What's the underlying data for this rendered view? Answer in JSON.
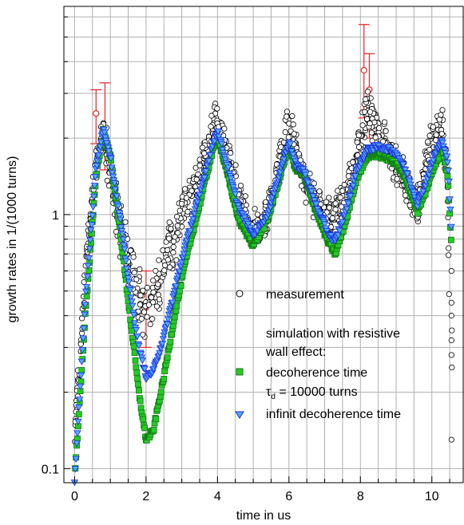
{
  "chart_data": {
    "type": "scatter",
    "title": "",
    "xlabel": "time in us",
    "ylabel": "growth rates in 1/(1000 turns)",
    "xlim": [
      -0.3,
      10.9
    ],
    "ylim": [
      0.088,
      6.6
    ],
    "yscale": "log",
    "grid": true,
    "legend_position": "bottom-right",
    "x_ticks": [
      0,
      2,
      4,
      6,
      8,
      10
    ],
    "x_tick_labels": [
      "0",
      "2",
      "4",
      "6",
      "8",
      "10"
    ],
    "y_ticks": [
      0.1,
      1
    ],
    "y_tick_labels": [
      "0.1",
      "1"
    ],
    "legend": {
      "measurement": "measurement",
      "heading_line1": "simulation with resistive",
      "heading_line2": "wall effect:",
      "decoherence": "decoherence time",
      "tau_symbol": "τ",
      "tau_subscript": "d",
      "tau_value": " = 10000 turns",
      "infinite": "infinit decoherence time"
    },
    "colors": {
      "measurement": "#000000",
      "decoherence_fill": "#22cc22",
      "decoherence_edge": "#117711",
      "infinite_fill": "#55aaff",
      "infinite_edge": "#1a2ee0",
      "error_bars": "#ee2222"
    },
    "series": [
      {
        "name": "measurement",
        "marker": "open-circle",
        "points": [
          [
            0,
            0.15
          ],
          [
            0.2,
            0.35
          ],
          [
            0.4,
            0.85
          ],
          [
            0.6,
            1.6
          ],
          [
            0.8,
            2.2
          ],
          [
            1.0,
            1.5
          ],
          [
            1.2,
            1.0
          ],
          [
            1.5,
            0.62
          ],
          [
            1.8,
            0.48
          ],
          [
            2.0,
            0.42
          ],
          [
            2.3,
            0.5
          ],
          [
            2.7,
            0.75
          ],
          [
            3.0,
            1.0
          ],
          [
            3.4,
            1.35
          ],
          [
            3.7,
            1.8
          ],
          [
            3.95,
            2.4
          ],
          [
            4.3,
            1.7
          ],
          [
            4.7,
            1.05
          ],
          [
            5.0,
            0.85
          ],
          [
            5.3,
            0.95
          ],
          [
            5.7,
            1.5
          ],
          [
            6.0,
            2.3
          ],
          [
            6.2,
            1.8
          ],
          [
            6.5,
            1.3
          ],
          [
            6.8,
            1.1
          ],
          [
            7.2,
            0.95
          ],
          [
            7.6,
            1.15
          ],
          [
            8.0,
            2.0
          ],
          [
            8.2,
            2.6
          ],
          [
            8.5,
            2.1
          ],
          [
            8.8,
            1.8
          ],
          [
            9.1,
            1.5
          ],
          [
            9.4,
            1.2
          ],
          [
            9.6,
            1.05
          ],
          [
            9.9,
            1.8
          ],
          [
            10.3,
            2.3
          ],
          [
            10.45,
            1.2
          ],
          [
            10.5,
            0.3
          ]
        ]
      },
      {
        "name": "decoherence time",
        "marker": "square",
        "points": [
          [
            0,
            0.09
          ],
          [
            0.3,
            0.4
          ],
          [
            0.6,
            1.4
          ],
          [
            0.8,
            2.15
          ],
          [
            1.0,
            1.7
          ],
          [
            1.3,
            0.8
          ],
          [
            1.6,
            0.35
          ],
          [
            1.8,
            0.2
          ],
          [
            2.0,
            0.13
          ],
          [
            2.2,
            0.14
          ],
          [
            2.5,
            0.23
          ],
          [
            2.8,
            0.4
          ],
          [
            3.1,
            0.65
          ],
          [
            3.5,
            1.1
          ],
          [
            3.8,
            1.65
          ],
          [
            4.0,
            2.05
          ],
          [
            4.3,
            1.4
          ],
          [
            4.6,
            0.95
          ],
          [
            5.0,
            0.76
          ],
          [
            5.4,
            0.95
          ],
          [
            5.8,
            1.5
          ],
          [
            6.0,
            1.85
          ],
          [
            6.2,
            1.5
          ],
          [
            6.4,
            1.45
          ],
          [
            6.8,
            1.0
          ],
          [
            7.1,
            0.78
          ],
          [
            7.3,
            0.7
          ],
          [
            7.6,
            0.95
          ],
          [
            7.9,
            1.4
          ],
          [
            8.2,
            1.7
          ],
          [
            8.5,
            1.72
          ],
          [
            8.8,
            1.65
          ],
          [
            9.0,
            1.6
          ],
          [
            9.3,
            1.35
          ],
          [
            9.6,
            1.03
          ],
          [
            9.8,
            1.2
          ],
          [
            10.1,
            1.6
          ],
          [
            10.3,
            1.8
          ],
          [
            10.45,
            1.4
          ],
          [
            10.55,
            0.75
          ]
        ]
      },
      {
        "name": "infinit decoherence time",
        "marker": "triangle-down",
        "points": [
          [
            0,
            0.09
          ],
          [
            0.3,
            0.45
          ],
          [
            0.6,
            1.5
          ],
          [
            0.8,
            2.2
          ],
          [
            1.0,
            1.7
          ],
          [
            1.3,
            0.9
          ],
          [
            1.6,
            0.45
          ],
          [
            1.8,
            0.3
          ],
          [
            2.0,
            0.23
          ],
          [
            2.2,
            0.24
          ],
          [
            2.5,
            0.33
          ],
          [
            2.8,
            0.5
          ],
          [
            3.1,
            0.75
          ],
          [
            3.5,
            1.2
          ],
          [
            3.8,
            1.75
          ],
          [
            4.0,
            2.15
          ],
          [
            4.3,
            1.5
          ],
          [
            4.6,
            1.05
          ],
          [
            5.0,
            0.83
          ],
          [
            5.4,
            1.0
          ],
          [
            5.8,
            1.55
          ],
          [
            6.0,
            1.95
          ],
          [
            6.2,
            1.55
          ],
          [
            6.4,
            1.5
          ],
          [
            6.8,
            1.05
          ],
          [
            7.1,
            0.84
          ],
          [
            7.3,
            0.78
          ],
          [
            7.6,
            1.05
          ],
          [
            7.9,
            1.5
          ],
          [
            8.2,
            1.8
          ],
          [
            8.5,
            1.85
          ],
          [
            8.8,
            1.8
          ],
          [
            9.0,
            1.75
          ],
          [
            9.3,
            1.45
          ],
          [
            9.6,
            1.1
          ],
          [
            9.8,
            1.3
          ],
          [
            10.1,
            1.75
          ],
          [
            10.3,
            1.95
          ],
          [
            10.45,
            1.6
          ],
          [
            10.55,
            0.85
          ]
        ]
      }
    ],
    "error_bars": [
      {
        "x": 0.6,
        "y": 2.5,
        "ylow": 1.9,
        "yhigh": 3.1
      },
      {
        "x": 0.85,
        "y": 2.0,
        "ylow": 1.5,
        "yhigh": 3.3
      },
      {
        "x": 2.0,
        "y": 0.43,
        "ylow": 0.3,
        "yhigh": 0.6
      },
      {
        "x": 8.1,
        "y": 3.7,
        "ylow": 2.4,
        "yhigh": 5.6
      },
      {
        "x": 8.25,
        "y": 3.1,
        "ylow": 2.0,
        "yhigh": 4.3
      }
    ]
  }
}
